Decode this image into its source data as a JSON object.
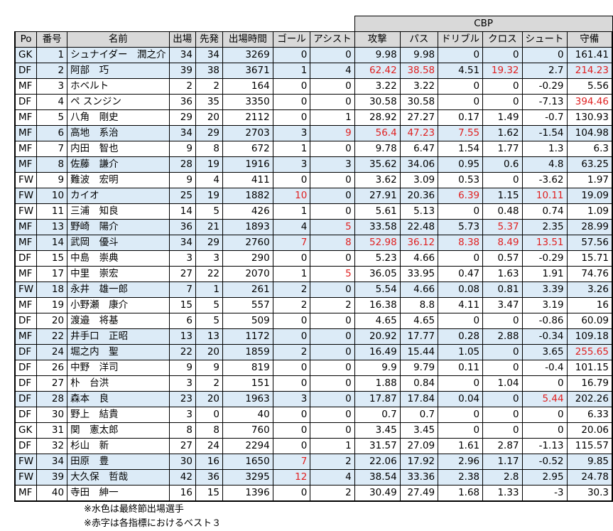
{
  "group_header": "CBP",
  "headers": [
    "Po",
    "番号",
    "名前",
    "出場",
    "先発",
    "出場時間",
    "ゴール",
    "アシスト",
    "攻撃",
    "パス",
    "ドリブル",
    "クロス",
    "シュート",
    "守備"
  ],
  "rows": [
    {
      "po": "GK",
      "no": 1,
      "name": "シュナイダー　潤之介",
      "apps": 34,
      "starts": 34,
      "minutes": 3269,
      "goals": 0,
      "assists": 0,
      "attack": 9.98,
      "pass": 9.98,
      "dribble": 0,
      "cross": 0,
      "shoot": 0,
      "defense": 161.41,
      "final": true,
      "best": []
    },
    {
      "po": "DF",
      "no": 2,
      "name": "阿部　巧",
      "apps": 39,
      "starts": 38,
      "minutes": 3671,
      "goals": 1,
      "assists": 4,
      "attack": 62.42,
      "pass": 38.58,
      "dribble": 4.51,
      "cross": 19.32,
      "shoot": 2.7,
      "defense": 214.23,
      "final": true,
      "best": [
        "attack",
        "pass",
        "cross",
        "defense"
      ]
    },
    {
      "po": "MF",
      "no": 3,
      "name": "ホベルト",
      "apps": 2,
      "starts": 2,
      "minutes": 164,
      "goals": 0,
      "assists": 0,
      "attack": 3.22,
      "pass": 3.22,
      "dribble": 0,
      "cross": 0,
      "shoot": -0.29,
      "defense": 5.56,
      "final": false,
      "best": []
    },
    {
      "po": "DF",
      "no": 4,
      "name": "ペ スンジン",
      "apps": 36,
      "starts": 35,
      "minutes": 3350,
      "goals": 0,
      "assists": 0,
      "attack": 30.58,
      "pass": 30.58,
      "dribble": 0,
      "cross": 0,
      "shoot": -7.13,
      "defense": 394.46,
      "final": false,
      "best": [
        "defense"
      ]
    },
    {
      "po": "MF",
      "no": 5,
      "name": "八角　剛史",
      "apps": 29,
      "starts": 20,
      "minutes": 2112,
      "goals": 0,
      "assists": 1,
      "attack": 28.92,
      "pass": 27.27,
      "dribble": 0.17,
      "cross": 1.49,
      "shoot": -0.7,
      "defense": 130.93,
      "final": false,
      "best": []
    },
    {
      "po": "MF",
      "no": 6,
      "name": "高地　系治",
      "apps": 34,
      "starts": 29,
      "minutes": 2703,
      "goals": 3,
      "assists": 9,
      "attack": 56.4,
      "pass": 47.23,
      "dribble": 7.55,
      "cross": 1.62,
      "shoot": -1.54,
      "defense": 104.98,
      "final": true,
      "best": [
        "assists",
        "attack",
        "pass",
        "dribble"
      ]
    },
    {
      "po": "MF",
      "no": 7,
      "name": "内田　智也",
      "apps": 9,
      "starts": 8,
      "minutes": 672,
      "goals": 1,
      "assists": 0,
      "attack": 9.78,
      "pass": 6.47,
      "dribble": 1.54,
      "cross": 1.77,
      "shoot": 1.3,
      "defense": 6.3,
      "final": false,
      "best": []
    },
    {
      "po": "MF",
      "no": 8,
      "name": "佐藤　謙介",
      "apps": 28,
      "starts": 19,
      "minutes": 1916,
      "goals": 3,
      "assists": 3,
      "attack": 35.62,
      "pass": 34.06,
      "dribble": 0.95,
      "cross": 0.6,
      "shoot": 4.8,
      "defense": 63.25,
      "final": true,
      "best": []
    },
    {
      "po": "FW",
      "no": 9,
      "name": "難波　宏明",
      "apps": 9,
      "starts": 4,
      "minutes": 411,
      "goals": 0,
      "assists": 0,
      "attack": 3.62,
      "pass": 3.09,
      "dribble": 0.53,
      "cross": 0,
      "shoot": -3.62,
      "defense": 1.97,
      "final": false,
      "best": []
    },
    {
      "po": "FW",
      "no": 10,
      "name": "カイオ",
      "apps": 25,
      "starts": 19,
      "minutes": 1882,
      "goals": 10,
      "assists": 0,
      "attack": 27.91,
      "pass": 20.36,
      "dribble": 6.39,
      "cross": 1.15,
      "shoot": 10.11,
      "defense": 19.09,
      "final": true,
      "best": [
        "goals",
        "dribble",
        "shoot"
      ]
    },
    {
      "po": "FW",
      "no": 11,
      "name": "三浦　知良",
      "apps": 14,
      "starts": 5,
      "minutes": 426,
      "goals": 1,
      "assists": 0,
      "attack": 5.61,
      "pass": 5.13,
      "dribble": 0,
      "cross": 0.48,
      "shoot": 0.74,
      "defense": 1.09,
      "final": false,
      "best": []
    },
    {
      "po": "MF",
      "no": 13,
      "name": "野崎　陽介",
      "apps": 36,
      "starts": 21,
      "minutes": 1893,
      "goals": 4,
      "assists": 5,
      "attack": 33.58,
      "pass": 22.48,
      "dribble": 5.73,
      "cross": 5.37,
      "shoot": 2.35,
      "defense": 28.99,
      "final": true,
      "best": [
        "assists",
        "cross"
      ]
    },
    {
      "po": "MF",
      "no": 14,
      "name": "武岡　優斗",
      "apps": 34,
      "starts": 29,
      "minutes": 2760,
      "goals": 7,
      "assists": 8,
      "attack": 52.98,
      "pass": 36.12,
      "dribble": 8.38,
      "cross": 8.49,
      "shoot": 13.51,
      "defense": 57.56,
      "final": true,
      "best": [
        "goals",
        "assists",
        "attack",
        "pass",
        "dribble",
        "cross",
        "shoot"
      ]
    },
    {
      "po": "DF",
      "no": 15,
      "name": "中島　崇典",
      "apps": 3,
      "starts": 3,
      "minutes": 290,
      "goals": 0,
      "assists": 0,
      "attack": 5.23,
      "pass": 4.66,
      "dribble": 0,
      "cross": 0.57,
      "shoot": -0.29,
      "defense": 15.71,
      "final": false,
      "best": []
    },
    {
      "po": "MF",
      "no": 17,
      "name": "中里　崇宏",
      "apps": 27,
      "starts": 22,
      "minutes": 2070,
      "goals": 1,
      "assists": 5,
      "attack": 36.05,
      "pass": 33.95,
      "dribble": 0.47,
      "cross": 1.63,
      "shoot": 1.91,
      "defense": 74.76,
      "final": false,
      "best": [
        "assists"
      ]
    },
    {
      "po": "FW",
      "no": 18,
      "name": "永井　雄一郎",
      "apps": 7,
      "starts": 1,
      "minutes": 261,
      "goals": 2,
      "assists": 0,
      "attack": 5.54,
      "pass": 4.66,
      "dribble": 0.08,
      "cross": 0.81,
      "shoot": 3.39,
      "defense": 3.26,
      "final": true,
      "best": []
    },
    {
      "po": "MF",
      "no": 19,
      "name": "小野瀬　康介",
      "apps": 15,
      "starts": 5,
      "minutes": 557,
      "goals": 2,
      "assists": 2,
      "attack": 16.38,
      "pass": 8.8,
      "dribble": 4.11,
      "cross": 3.47,
      "shoot": 3.19,
      "defense": 16,
      "final": false,
      "best": []
    },
    {
      "po": "DF",
      "no": 20,
      "name": "渡邉　将基",
      "apps": 6,
      "starts": 5,
      "minutes": 509,
      "goals": 0,
      "assists": 0,
      "attack": 4.65,
      "pass": 4.65,
      "dribble": 0,
      "cross": 0,
      "shoot": -0.86,
      "defense": 60.09,
      "final": false,
      "best": []
    },
    {
      "po": "MF",
      "no": 22,
      "name": "井手口　正昭",
      "apps": 13,
      "starts": 13,
      "minutes": 1172,
      "goals": 0,
      "assists": 0,
      "attack": 20.92,
      "pass": 17.77,
      "dribble": 0.28,
      "cross": 2.88,
      "shoot": -0.34,
      "defense": 109.18,
      "final": true,
      "best": []
    },
    {
      "po": "DF",
      "no": 24,
      "name": "堀之内　聖",
      "apps": 22,
      "starts": 20,
      "minutes": 1859,
      "goals": 2,
      "assists": 0,
      "attack": 16.49,
      "pass": 15.44,
      "dribble": 1.05,
      "cross": 0,
      "shoot": 3.65,
      "defense": 255.65,
      "final": true,
      "best": [
        "defense"
      ]
    },
    {
      "po": "DF",
      "no": 26,
      "name": "中野　洋司",
      "apps": 9,
      "starts": 9,
      "minutes": 819,
      "goals": 0,
      "assists": 0,
      "attack": 9.9,
      "pass": 9.79,
      "dribble": 0.11,
      "cross": 0,
      "shoot": -0.4,
      "defense": 101.15,
      "final": false,
      "best": []
    },
    {
      "po": "DF",
      "no": 27,
      "name": "朴　台洪",
      "apps": 3,
      "starts": 2,
      "minutes": 151,
      "goals": 0,
      "assists": 0,
      "attack": 1.88,
      "pass": 0.84,
      "dribble": 0,
      "cross": 1.04,
      "shoot": 0,
      "defense": 16.79,
      "final": false,
      "best": []
    },
    {
      "po": "DF",
      "no": 28,
      "name": "森本　良",
      "apps": 23,
      "starts": 20,
      "minutes": 1963,
      "goals": 3,
      "assists": 0,
      "attack": 17.87,
      "pass": 17.84,
      "dribble": 0.04,
      "cross": 0,
      "shoot": 5.44,
      "defense": 202.26,
      "final": true,
      "best": [
        "shoot"
      ]
    },
    {
      "po": "DF",
      "no": 30,
      "name": "野上　結貴",
      "apps": 3,
      "starts": 0,
      "minutes": 40,
      "goals": 0,
      "assists": 0,
      "attack": 0.7,
      "pass": 0.7,
      "dribble": 0,
      "cross": 0,
      "shoot": 0,
      "defense": 6.33,
      "final": false,
      "best": []
    },
    {
      "po": "GK",
      "no": 31,
      "name": "関　憲太郎",
      "apps": 8,
      "starts": 8,
      "minutes": 760,
      "goals": 0,
      "assists": 0,
      "attack": 3.45,
      "pass": 3.45,
      "dribble": 0,
      "cross": 0,
      "shoot": 0,
      "defense": 20.06,
      "final": false,
      "best": []
    },
    {
      "po": "DF",
      "no": 32,
      "name": "杉山　新",
      "apps": 27,
      "starts": 24,
      "minutes": 2294,
      "goals": 0,
      "assists": 1,
      "attack": 31.57,
      "pass": 27.09,
      "dribble": 1.61,
      "cross": 2.87,
      "shoot": -1.13,
      "defense": 115.57,
      "final": false,
      "best": []
    },
    {
      "po": "FW",
      "no": 34,
      "name": "田原　豊",
      "apps": 30,
      "starts": 16,
      "minutes": 1650,
      "goals": 7,
      "assists": 2,
      "attack": 22.06,
      "pass": 17.92,
      "dribble": 2.96,
      "cross": 1.17,
      "shoot": -0.52,
      "defense": 9.85,
      "final": true,
      "best": [
        "goals"
      ]
    },
    {
      "po": "FW",
      "no": 39,
      "name": "大久保　哲哉",
      "apps": 42,
      "starts": 36,
      "minutes": 3295,
      "goals": 12,
      "assists": 4,
      "attack": 38.54,
      "pass": 33.36,
      "dribble": 2.38,
      "cross": 2.8,
      "shoot": 2.95,
      "defense": 24.78,
      "final": true,
      "best": [
        "goals"
      ]
    },
    {
      "po": "MF",
      "no": 40,
      "name": "寺田　紳一",
      "apps": 16,
      "starts": 15,
      "minutes": 1396,
      "goals": 0,
      "assists": 2,
      "attack": 30.49,
      "pass": 27.49,
      "dribble": 1.68,
      "cross": 1.33,
      "shoot": -3,
      "defense": 30.3,
      "final": false,
      "best": []
    }
  ],
  "notes": [
    "※水色は最終節出場選手",
    "※赤字は各指標におけるベスト３"
  ],
  "colors": {
    "final_row_fill": "#dcebf7",
    "header_fill": "#d9d9d9",
    "best_text": "#e02020"
  }
}
